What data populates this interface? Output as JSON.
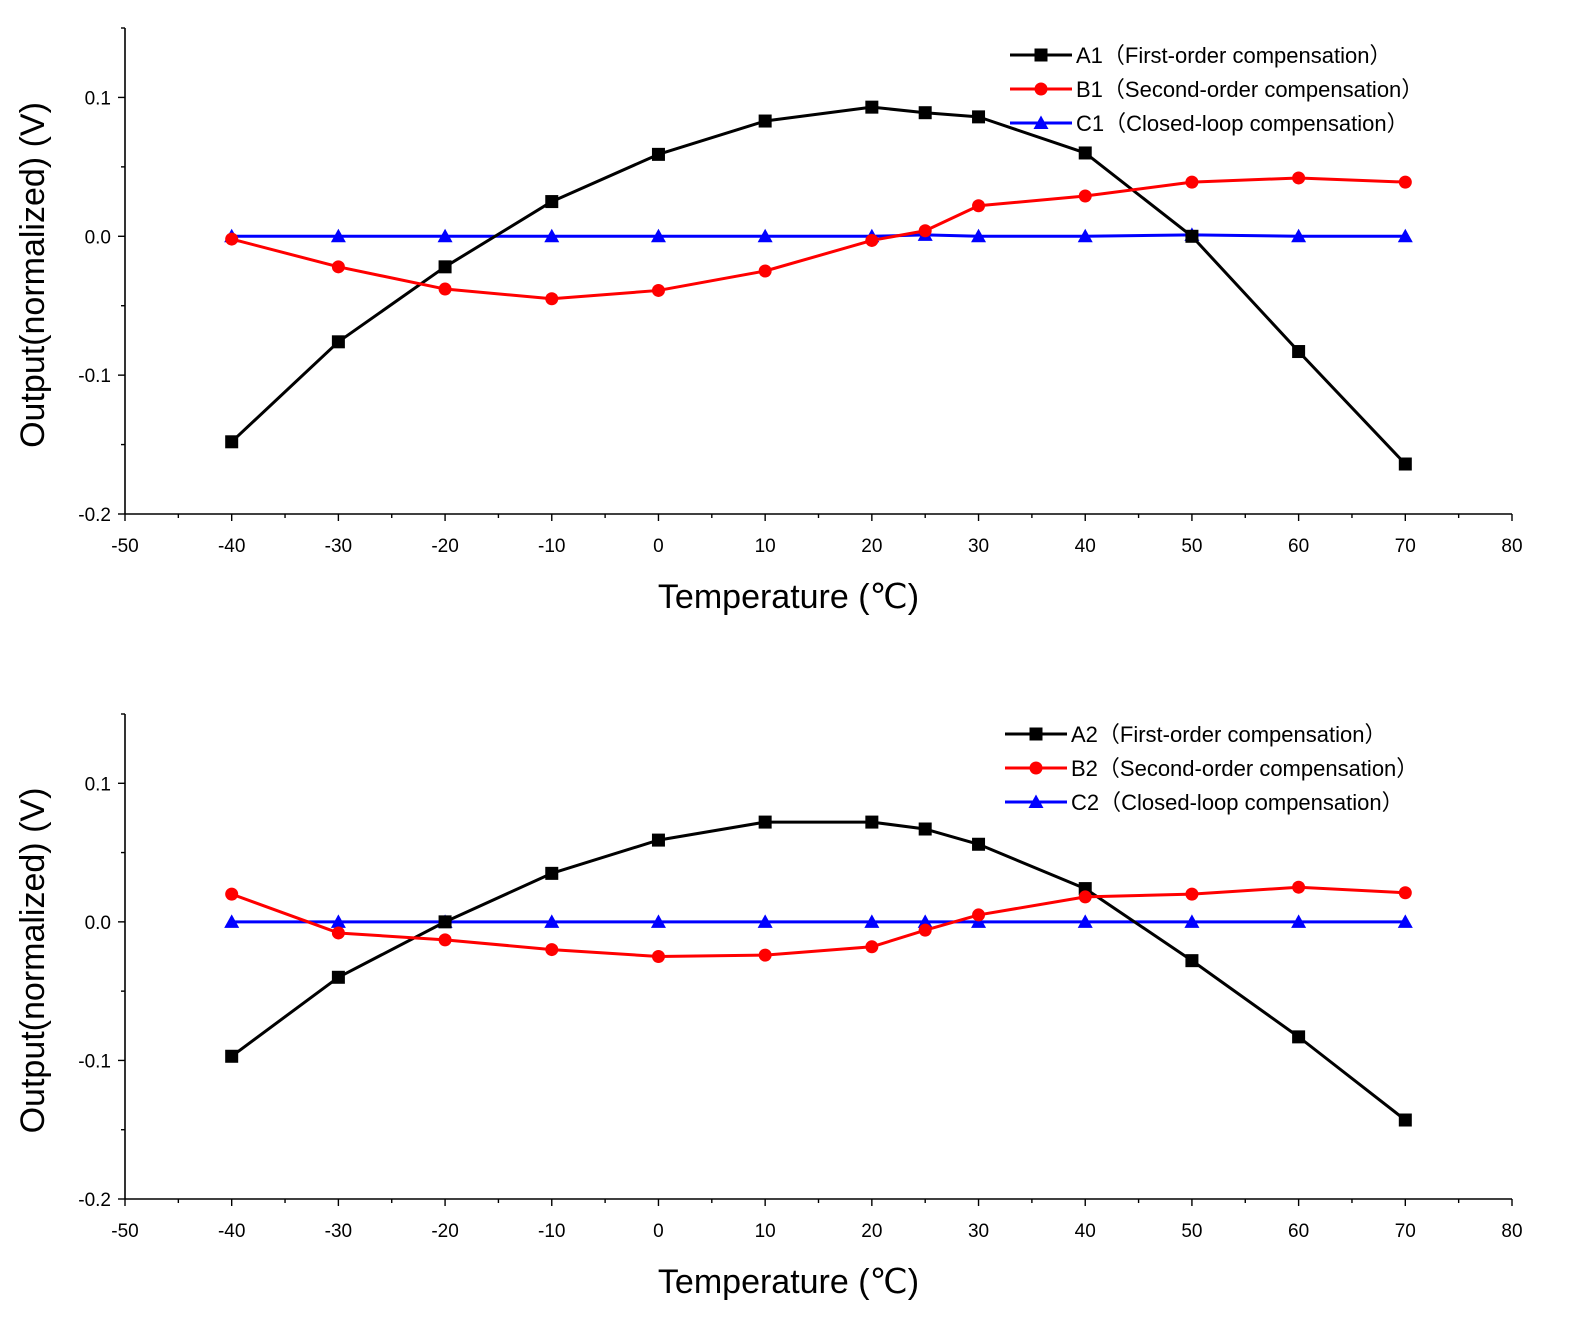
{
  "chart_data": [
    {
      "type": "line",
      "xlabel": "Temperature (℃)",
      "ylabel": "Output(normalized) (V)",
      "xlim": [
        -50,
        80
      ],
      "ylim": [
        -0.2,
        0.15
      ],
      "xticks": [
        "-50",
        "-40",
        "-30",
        "-20",
        "-10",
        "0",
        "10",
        "20",
        "30",
        "40",
        "50",
        "60",
        "70",
        "80"
      ],
      "yticks": [
        "-0.2",
        "-0.1",
        "0.0",
        "0.1"
      ],
      "x": [
        -40,
        -30,
        -20,
        -10,
        0,
        10,
        20,
        25,
        30,
        40,
        50,
        60,
        70
      ],
      "legend_position": "top-right",
      "series": [
        {
          "name": "A1（First-order compensation）",
          "color": "#000000",
          "marker": "square",
          "values": [
            -0.148,
            -0.076,
            -0.022,
            0.025,
            0.059,
            0.083,
            0.093,
            0.089,
            0.086,
            0.06,
            0.0,
            -0.083,
            -0.164
          ]
        },
        {
          "name": "B1（Second-order compensation）",
          "color": "#ff0000",
          "marker": "circle",
          "values": [
            -0.002,
            -0.022,
            -0.038,
            -0.045,
            -0.039,
            -0.025,
            -0.003,
            0.004,
            0.022,
            0.029,
            0.039,
            0.042,
            0.039
          ]
        },
        {
          "name": "C1（Closed-loop compensation）",
          "color": "#0000ff",
          "marker": "triangle",
          "values": [
            0.0,
            0.0,
            0.0,
            0.0,
            0.0,
            0.0,
            0.0,
            0.001,
            0.0,
            0.0,
            0.001,
            0.0,
            0.0
          ]
        }
      ]
    },
    {
      "type": "line",
      "xlabel": "Temperature (℃)",
      "ylabel": "Output(normalized) (V)",
      "xlim": [
        -50,
        80
      ],
      "ylim": [
        -0.2,
        0.15
      ],
      "xticks": [
        "-50",
        "-40",
        "-30",
        "-20",
        "-10",
        "0",
        "10",
        "20",
        "30",
        "40",
        "50",
        "60",
        "70",
        "80"
      ],
      "yticks": [
        "-0.2",
        "-0.1",
        "0.0",
        "0.1"
      ],
      "x": [
        -40,
        -30,
        -20,
        -10,
        0,
        10,
        20,
        25,
        30,
        40,
        50,
        60,
        70
      ],
      "legend_position": "top-right",
      "series": [
        {
          "name": "A2（First-order compensation）",
          "color": "#000000",
          "marker": "square",
          "values": [
            -0.097,
            -0.04,
            0.0,
            0.035,
            0.059,
            0.072,
            0.072,
            0.067,
            0.056,
            0.024,
            -0.028,
            -0.083,
            -0.143
          ]
        },
        {
          "name": "B2（Second-order compensation）",
          "color": "#ff0000",
          "marker": "circle",
          "values": [
            0.02,
            -0.008,
            -0.013,
            -0.02,
            -0.025,
            -0.024,
            -0.018,
            -0.006,
            0.005,
            0.018,
            0.02,
            0.025,
            0.021
          ]
        },
        {
          "name": "C2（Closed-loop compensation）",
          "color": "#0000ff",
          "marker": "triangle",
          "values": [
            0.0,
            0.0,
            0.0,
            0.0,
            0.0,
            0.0,
            0.0,
            0.0,
            0.0,
            0.0,
            0.0,
            0.0,
            0.0
          ]
        }
      ]
    }
  ]
}
